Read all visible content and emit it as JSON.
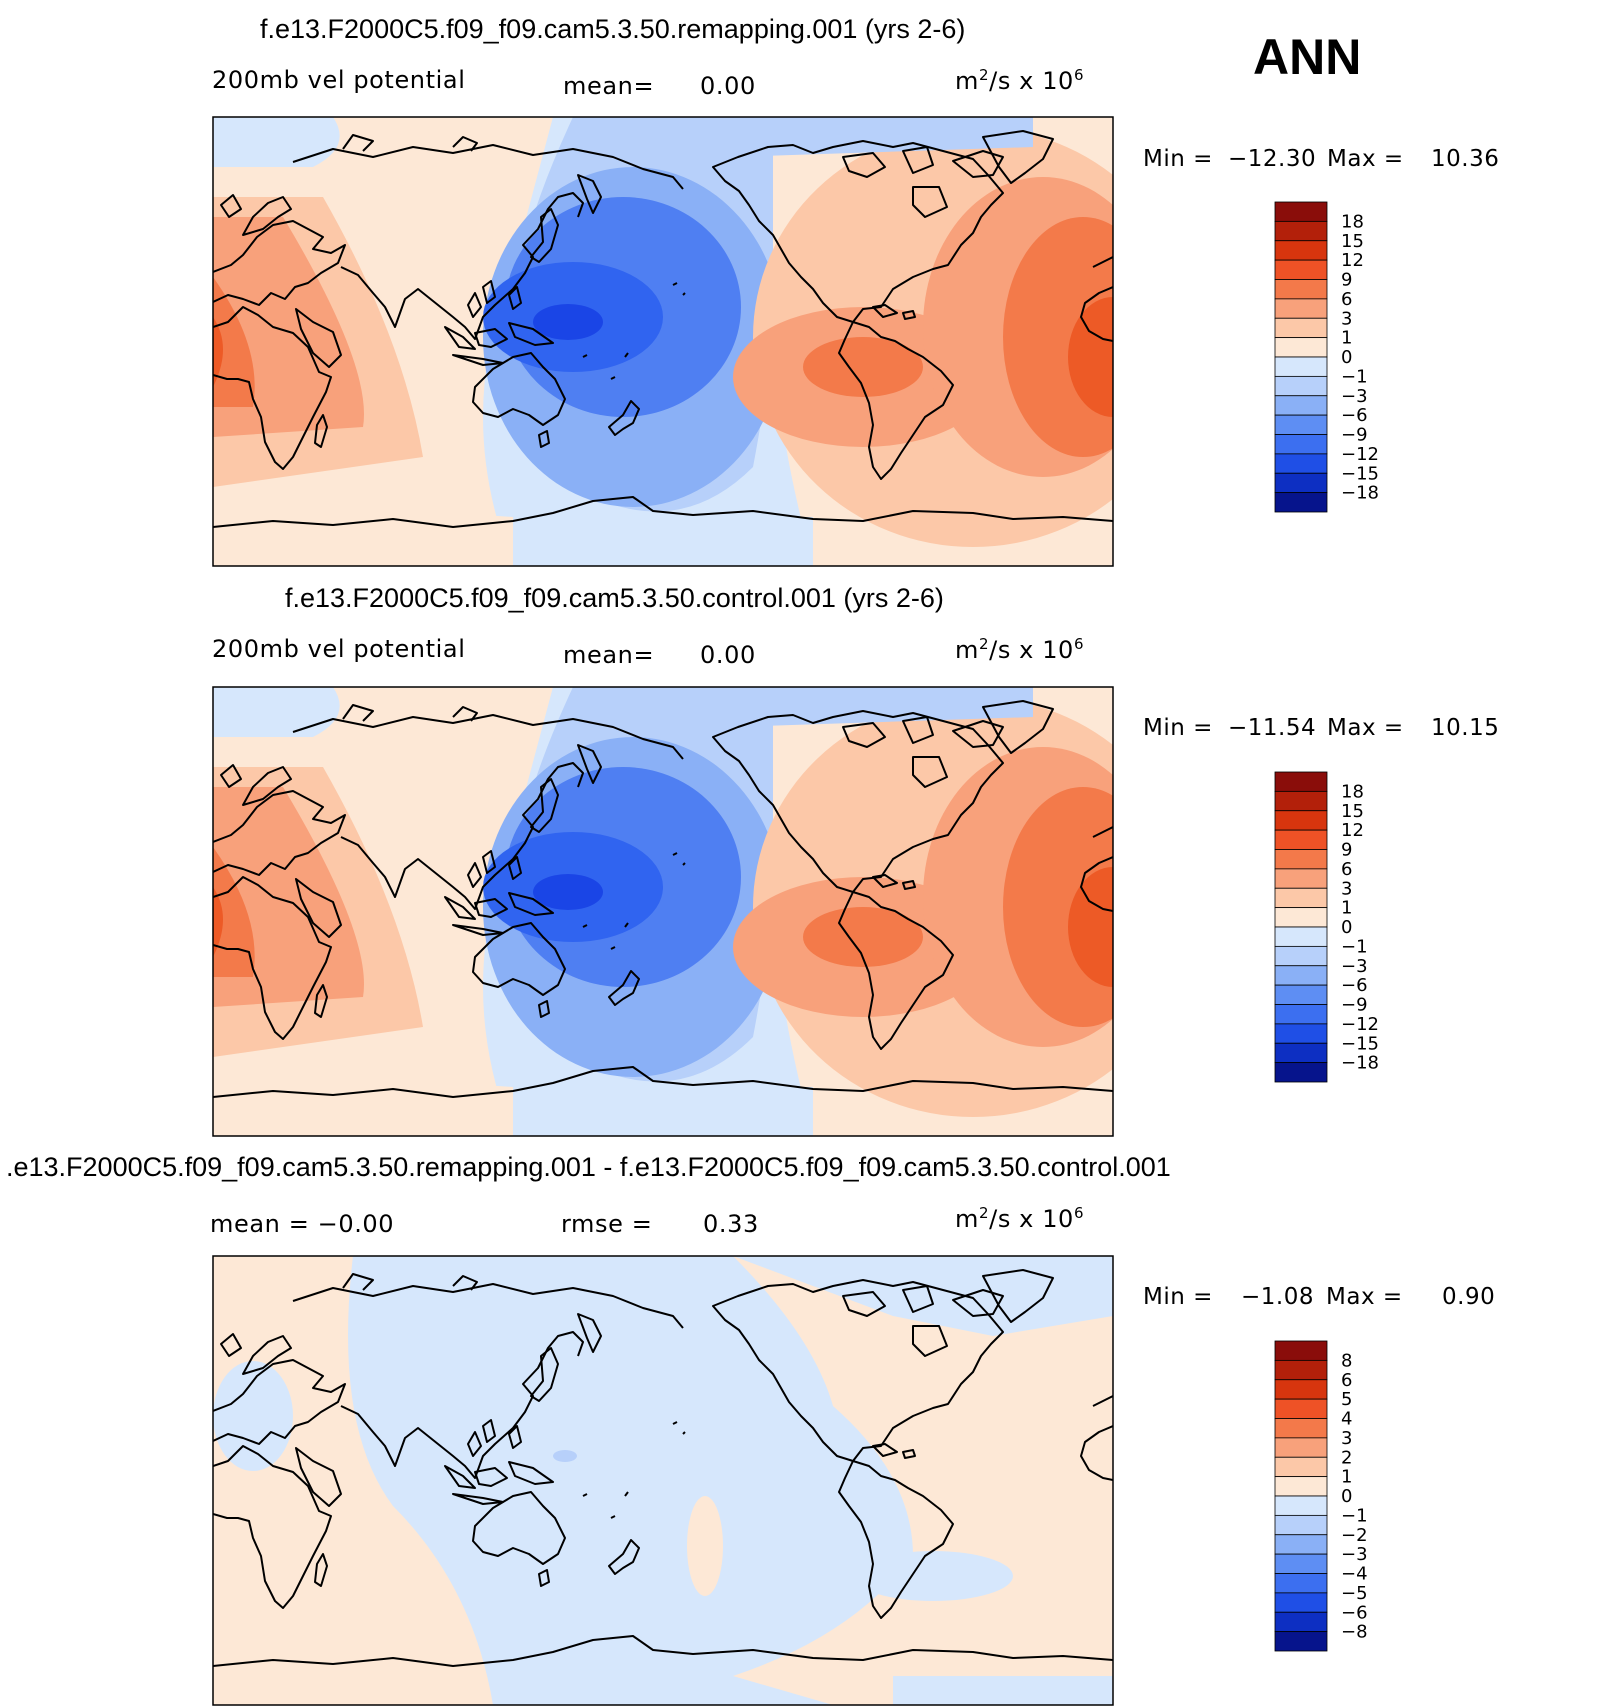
{
  "season": "ANN",
  "colors": {
    "d6": "#0a2aa8",
    "d5": "#1a45e6",
    "d4": "#3064f0",
    "d3": "#4f7ff2",
    "d2": "#8ab0f6",
    "d1": "#b7d0fa",
    "d0": "#d6e7fc",
    "w0": "#fde8d6",
    "w1": "#fcc8a8",
    "w2": "#f8a17b",
    "w3": "#f37a4a",
    "w4": "#ed5a26",
    "w5": "#c22d0c",
    "w6": "#8a0d0a",
    "coast": "#000000"
  },
  "panels": [
    {
      "title": "f.e13.F2000C5.f09_f09.cam5.3.50.remapping.001 (yrs 2-6)",
      "left_label": "200mb vel potential",
      "mid_label": "mean=",
      "mid_value": "0.00",
      "units_base": "m",
      "units_sup1": "2",
      "units_mid": "/s x 10",
      "units_sup2": "6",
      "min_label": "Min =",
      "min_value": "−12.30",
      "max_label": "Max =",
      "max_value": "10.36",
      "colorbar_labels": [
        "18",
        "15",
        "12",
        "9",
        "6",
        "3",
        "1",
        "0",
        "−1",
        "−3",
        "−6",
        "−9",
        "−12",
        "−15",
        "−18"
      ]
    },
    {
      "title": "f.e13.F2000C5.f09_f09.cam5.3.50.control.001 (yrs 2-6)",
      "left_label": "200mb vel potential",
      "mid_label": "mean=",
      "mid_value": "0.00",
      "units_base": "m",
      "units_sup1": "2",
      "units_mid": "/s x 10",
      "units_sup2": "6",
      "min_label": "Min =",
      "min_value": "−11.54",
      "max_label": "Max =",
      "max_value": "10.15",
      "colorbar_labels": [
        "18",
        "15",
        "12",
        "9",
        "6",
        "3",
        "1",
        "0",
        "−1",
        "−3",
        "−6",
        "−9",
        "−12",
        "−15",
        "−18"
      ]
    },
    {
      "title": ".e13.F2000C5.f09_f09.cam5.3.50.remapping.001 - f.e13.F2000C5.f09_f09.cam5.3.50.control.001",
      "left_label": "mean = −0.00",
      "mid_label": "rmse =",
      "mid_value": "0.33",
      "units_base": "m",
      "units_sup1": "2",
      "units_mid": "/s x 10",
      "units_sup2": "6",
      "min_label": "Min =",
      "min_value": "−1.08",
      "max_label": "Max =",
      "max_value": "0.90",
      "colorbar_labels": [
        "8",
        "6",
        "5",
        "4",
        "3",
        "2",
        "1",
        "0",
        "−1",
        "−2",
        "−3",
        "−4",
        "−5",
        "−6",
        "−8"
      ]
    }
  ],
  "chart_data": [
    {
      "type": "heatmap",
      "title": "f.e13.F2000C5.f09_f09.cam5.3.50.remapping.001 (yrs 2-6)",
      "variable": "200mb vel potential",
      "units": "m2/s x 10^6",
      "mean": 0.0,
      "min": -12.3,
      "max": 10.36,
      "contour_levels": [
        -18,
        -15,
        -12,
        -9,
        -6,
        -3,
        -1,
        0,
        1,
        3,
        6,
        9,
        12,
        15,
        18
      ]
    },
    {
      "type": "heatmap",
      "title": "f.e13.F2000C5.f09_f09.cam5.3.50.control.001 (yrs 2-6)",
      "variable": "200mb vel potential",
      "units": "m2/s x 10^6",
      "mean": 0.0,
      "min": -11.54,
      "max": 10.15,
      "contour_levels": [
        -18,
        -15,
        -12,
        -9,
        -6,
        -3,
        -1,
        0,
        1,
        3,
        6,
        9,
        12,
        15,
        18
      ]
    },
    {
      "type": "heatmap",
      "title": ".e13.F2000C5.f09_f09.cam5.3.50.remapping.001 - f.e13.F2000C5.f09_f09.cam5.3.50.control.001",
      "units": "m2/s x 10^6",
      "mean": -0.0,
      "rmse": 0.33,
      "min": -1.08,
      "max": 0.9,
      "contour_levels": [
        -8,
        -6,
        -5,
        -4,
        -3,
        -2,
        -1,
        0,
        1,
        2,
        3,
        4,
        5,
        6,
        8
      ]
    }
  ]
}
